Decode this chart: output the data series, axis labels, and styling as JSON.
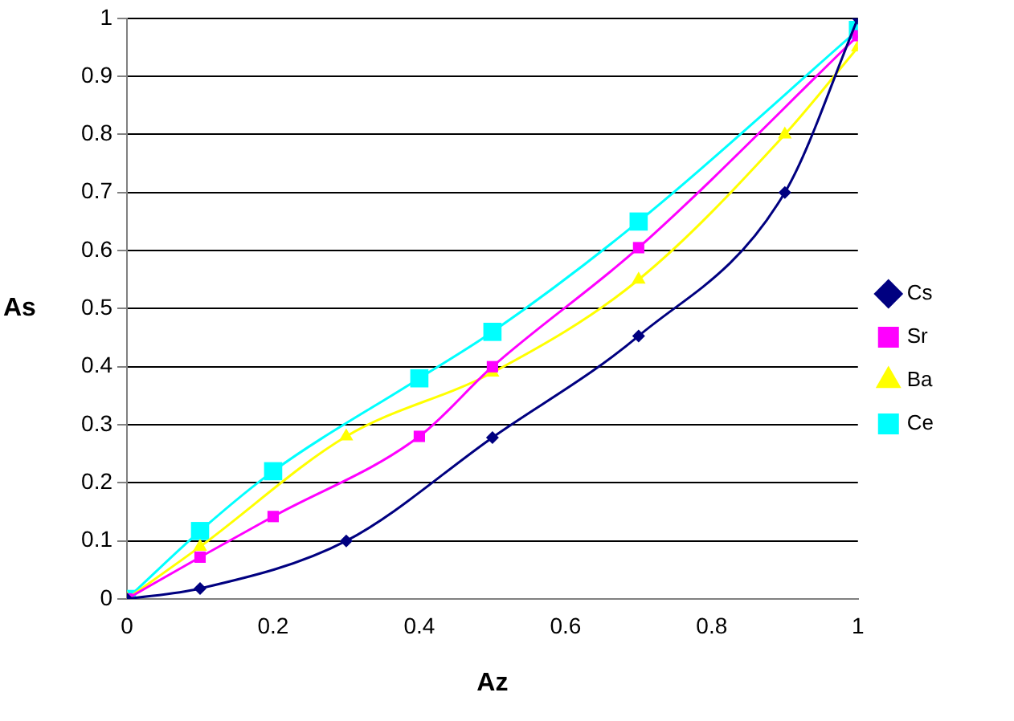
{
  "chart_data": {
    "type": "line",
    "xlabel": "Az",
    "ylabel": "As",
    "xlim": [
      0,
      1
    ],
    "xticks": [
      0,
      0.2,
      0.4,
      0.6,
      0.8,
      1
    ],
    "ylim": [
      0,
      1
    ],
    "yticks": [
      0,
      0.1,
      0.2,
      0.3,
      0.4,
      0.5,
      0.6,
      0.7,
      0.8,
      0.9,
      1
    ],
    "grid": "y",
    "legend": "right",
    "series": [
      {
        "name": "Cs",
        "color": "#000080",
        "marker": "diamond",
        "x": [
          0,
          0.1,
          0.3,
          0.5,
          0.7,
          0.9,
          1
        ],
        "values": [
          0,
          0.018,
          0.1,
          0.278,
          0.453,
          0.7,
          1.0
        ]
      },
      {
        "name": "Sr",
        "color": "#ff00ff",
        "marker": "square",
        "x": [
          0,
          0.1,
          0.2,
          0.4,
          0.5,
          0.7,
          1
        ],
        "values": [
          0,
          0.072,
          0.142,
          0.28,
          0.4,
          0.605,
          0.97
        ]
      },
      {
        "name": "Ba",
        "color": "#ffff00",
        "marker": "triangle",
        "x": [
          0,
          0.1,
          0.3,
          0.5,
          0.7,
          0.9,
          1
        ],
        "values": [
          0,
          0.09,
          0.28,
          0.39,
          0.55,
          0.8,
          0.95
        ]
      },
      {
        "name": "Ce",
        "color": "#00ffff",
        "marker": "square",
        "x": [
          0,
          0.1,
          0.2,
          0.4,
          0.5,
          0.7,
          1
        ],
        "values": [
          0,
          0.117,
          0.22,
          0.38,
          0.46,
          0.65,
          0.98
        ]
      }
    ]
  }
}
